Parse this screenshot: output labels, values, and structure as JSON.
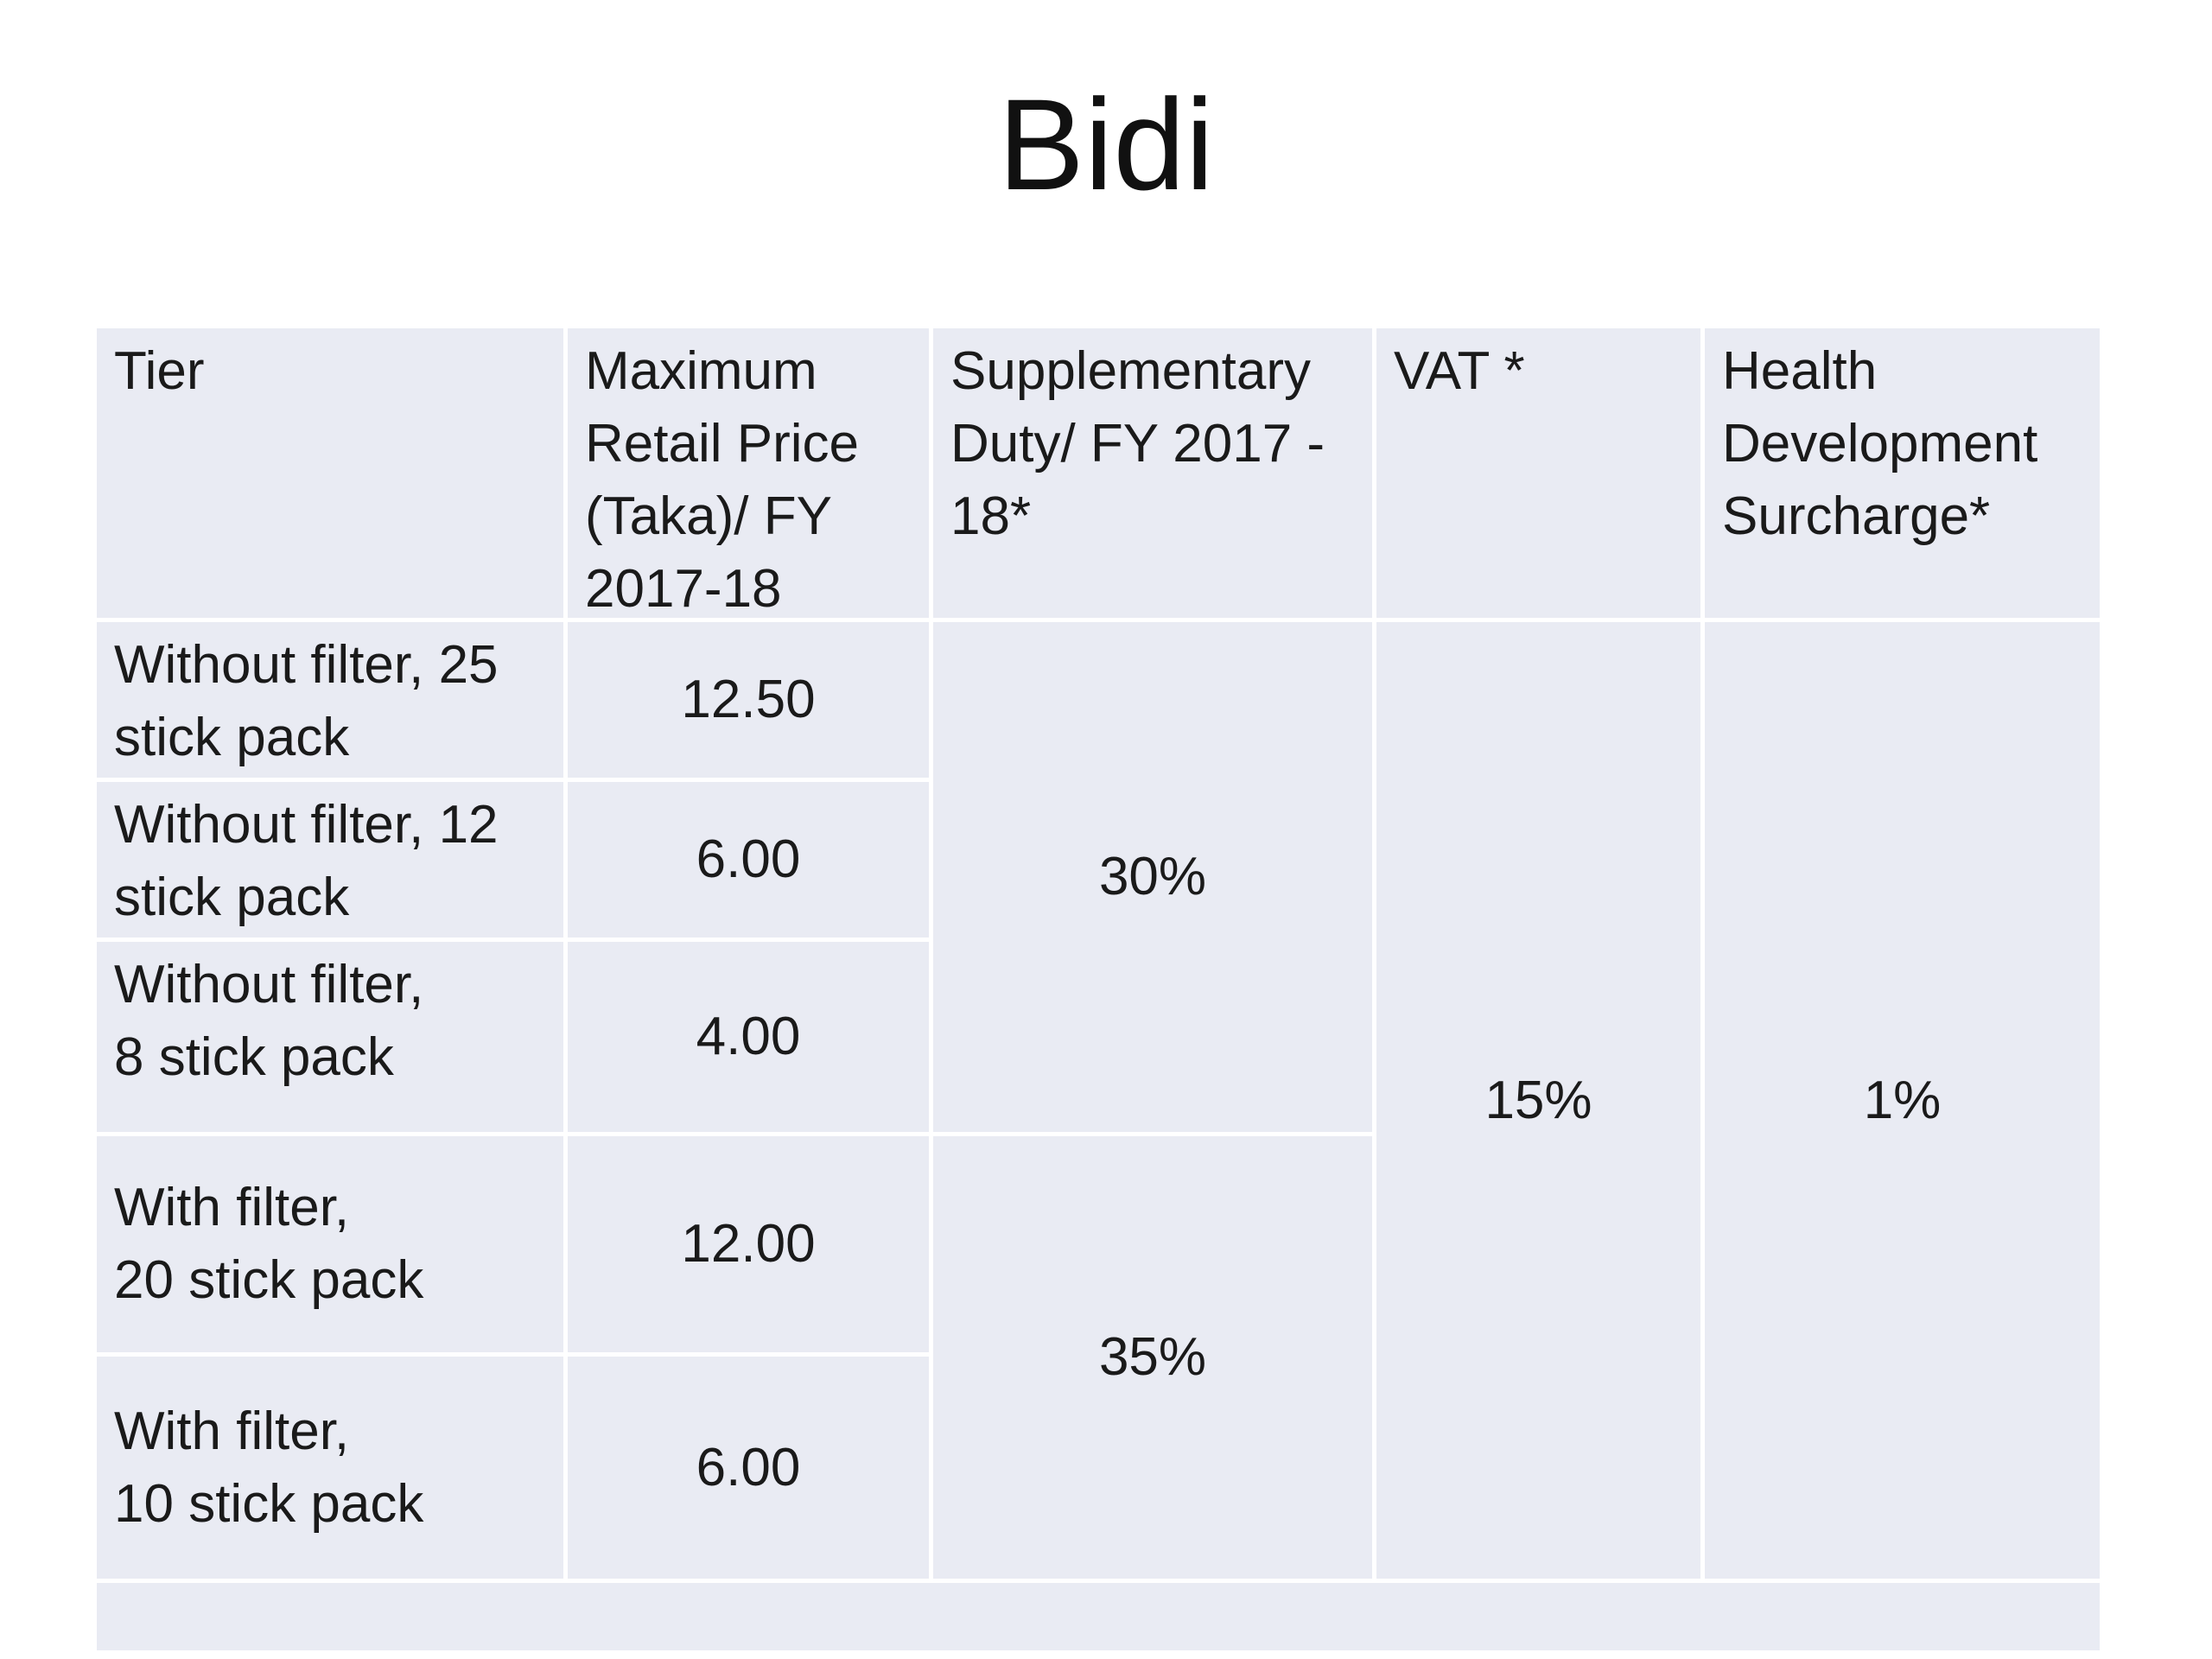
{
  "slide": {
    "title": "Bidi"
  },
  "table": {
    "headers": {
      "tier": "Tier",
      "mrp": "Maximum\nRetail Price\n(Taka)/ FY\n2017-18",
      "supplementary_duty": "Supplementary\nDuty/ FY 2017 -\n18*",
      "vat": "VAT *",
      "health_surcharge": "Health\nDevelopment\nSurcharge*"
    },
    "rows": [
      {
        "tier": "Without filter, 25\nstick pack",
        "mrp": "12.50"
      },
      {
        "tier": "Without filter, 12\nstick pack",
        "mrp": "6.00"
      },
      {
        "tier": "Without filter,\n8 stick pack",
        "mrp": "4.00"
      },
      {
        "tier": "With filter,\n20 stick pack",
        "mrp": "12.00"
      },
      {
        "tier": "With filter,\n10 stick pack",
        "mrp": "6.00"
      }
    ],
    "merged": {
      "supplementary_duty_without_filter": "30%",
      "supplementary_duty_with_filter": "35%",
      "vat": "15%",
      "health_surcharge": "1%"
    }
  },
  "colors": {
    "page_background": "#ffffff",
    "cell_background": "#e9ebf3",
    "grid_line": "#ffffff",
    "text": "#1a1a1a"
  },
  "chart_data": {
    "type": "table",
    "title": "Bidi",
    "columns": [
      "Tier",
      "Maximum Retail Price (Taka)/ FY 2017-18",
      "Supplementary Duty/ FY 2017 - 18*",
      "VAT *",
      "Health Development Surcharge*"
    ],
    "rows": [
      [
        "Without filter, 25 stick pack",
        "12.50",
        "30%",
        "15%",
        "1%"
      ],
      [
        "Without filter, 12 stick pack",
        "6.00",
        "30%",
        "15%",
        "1%"
      ],
      [
        "Without filter, 8 stick pack",
        "4.00",
        "30%",
        "15%",
        "1%"
      ],
      [
        "With filter, 20 stick pack",
        "12.00",
        "35%",
        "15%",
        "1%"
      ],
      [
        "With filter, 10 stick pack",
        "6.00",
        "35%",
        "15%",
        "1%"
      ]
    ],
    "merged_cells": [
      {
        "column": "Supplementary Duty/ FY 2017 - 18*",
        "rows": [
          0,
          2
        ],
        "value": "30%"
      },
      {
        "column": "Supplementary Duty/ FY 2017 - 18*",
        "rows": [
          3,
          4
        ],
        "value": "35%"
      },
      {
        "column": "VAT *",
        "rows": [
          0,
          4
        ],
        "value": "15%"
      },
      {
        "column": "Health Development Surcharge*",
        "rows": [
          0,
          4
        ],
        "value": "1%"
      }
    ]
  }
}
